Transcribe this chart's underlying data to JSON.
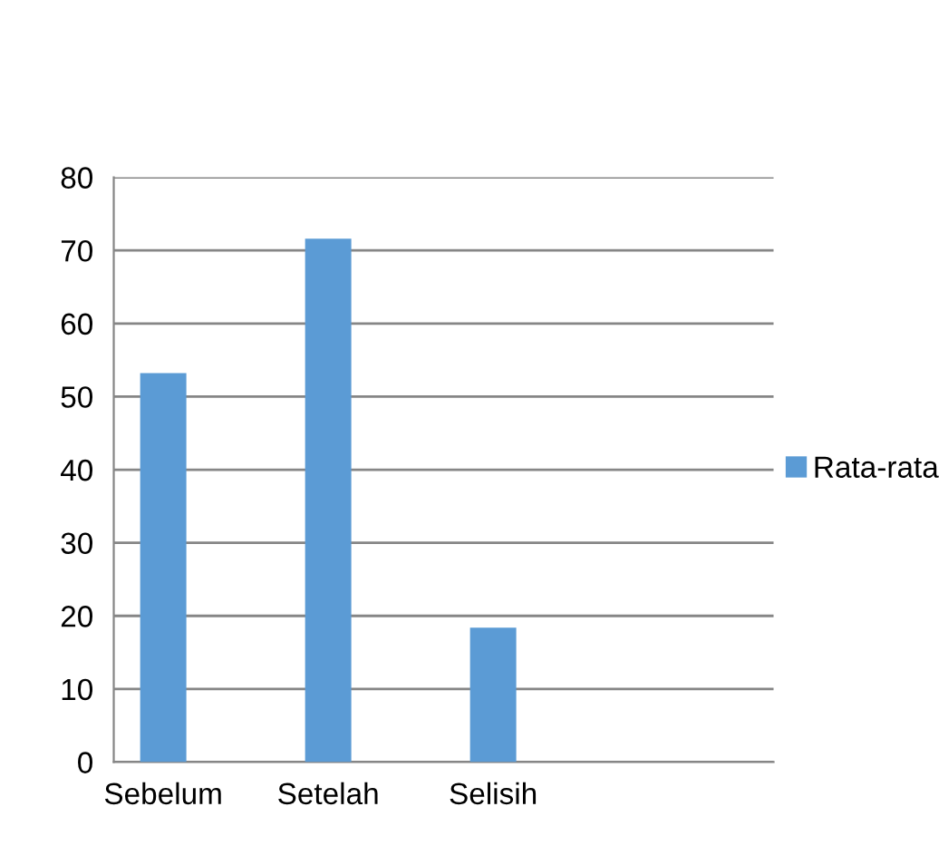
{
  "chart_data": {
    "type": "bar",
    "categories": [
      "Sebelum",
      "Setelah",
      "Selisih"
    ],
    "series": [
      {
        "name": "Rata-rata",
        "color": "#5b9bd5",
        "values": [
          53.2,
          71.6,
          18.4
        ]
      }
    ],
    "ylim": [
      0,
      80
    ],
    "yticks": [
      0,
      10,
      20,
      30,
      40,
      50,
      60,
      70,
      80
    ],
    "grid": "y",
    "legend": "right"
  }
}
